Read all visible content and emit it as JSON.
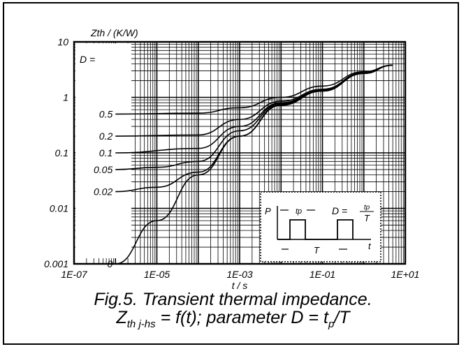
{
  "chart_data": {
    "type": "line",
    "title": "",
    "ylabel": "Zth / (K/W)",
    "xlabel": "t / s",
    "xscale": "log",
    "yscale": "log",
    "xlim": [
      1e-07,
      10
    ],
    "ylim": [
      0.001,
      10
    ],
    "x_ticks": [
      "1E-07",
      "1E-05",
      "1E-03",
      "1E-01",
      "1E+01"
    ],
    "y_ticks": [
      "10",
      "1",
      "0.1",
      "0.01",
      "0.001"
    ],
    "grid": true,
    "parameter_label": "D =",
    "series": [
      {
        "name": "0.5",
        "points": [
          [
            1e-06,
            0.5
          ],
          [
            0.0001,
            0.52
          ],
          [
            0.001,
            0.65
          ],
          [
            0.01,
            1.0
          ],
          [
            0.1,
            1.6
          ],
          [
            1,
            2.9
          ],
          [
            5,
            3.8
          ]
        ]
      },
      {
        "name": "0.2",
        "points": [
          [
            1e-06,
            0.2
          ],
          [
            0.0001,
            0.21
          ],
          [
            0.001,
            0.4
          ],
          [
            0.01,
            0.85
          ],
          [
            0.1,
            1.4
          ],
          [
            1,
            2.8
          ],
          [
            5,
            3.8
          ]
        ]
      },
      {
        "name": "0.1",
        "points": [
          [
            1e-06,
            0.1
          ],
          [
            0.0001,
            0.12
          ],
          [
            0.001,
            0.3
          ],
          [
            0.01,
            0.8
          ],
          [
            0.1,
            1.35
          ],
          [
            1,
            2.75
          ],
          [
            5,
            3.8
          ]
        ]
      },
      {
        "name": "0.05",
        "points": [
          [
            1e-06,
            0.05
          ],
          [
            1e-05,
            0.055
          ],
          [
            0.0001,
            0.07
          ],
          [
            0.001,
            0.25
          ],
          [
            0.01,
            0.78
          ],
          [
            0.1,
            1.3
          ],
          [
            1,
            2.7
          ],
          [
            5,
            3.8
          ]
        ]
      },
      {
        "name": "0.02",
        "points": [
          [
            1e-06,
            0.02
          ],
          [
            1e-05,
            0.024
          ],
          [
            0.0001,
            0.045
          ],
          [
            0.001,
            0.2
          ],
          [
            0.01,
            0.75
          ],
          [
            0.1,
            1.3
          ],
          [
            1,
            2.7
          ],
          [
            5,
            3.8
          ]
        ]
      },
      {
        "name": "0",
        "points": [
          [
            1e-06,
            0.001
          ],
          [
            1e-05,
            0.006
          ],
          [
            0.0001,
            0.04
          ],
          [
            0.001,
            0.2
          ],
          [
            0.01,
            0.72
          ],
          [
            0.1,
            1.3
          ],
          [
            1,
            2.7
          ],
          [
            5,
            3.8
          ]
        ]
      }
    ]
  },
  "inset": {
    "p_label": "P",
    "tp_label": "tp",
    "d_label": "D =",
    "frac_num": "tp",
    "frac_den": "T",
    "t_axis_label": "t",
    "period_label": "T"
  },
  "caption": {
    "line1": "Fig.5.  Transient thermal impedance.",
    "line2_z": "Z",
    "line2_sub": "th j-hs",
    "line2_rest": " = f(t); parameter D = t",
    "line2_sub2": "p",
    "line2_end": "/T"
  }
}
